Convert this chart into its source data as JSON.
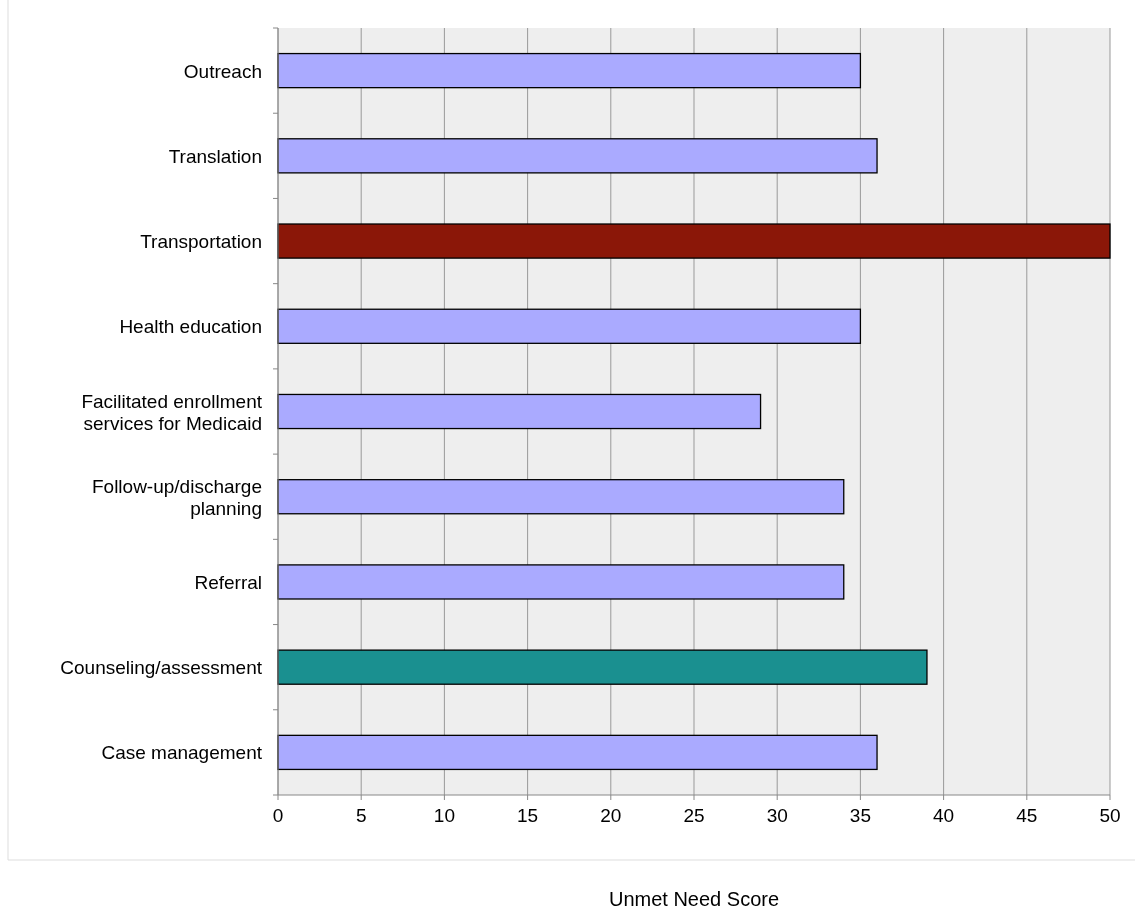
{
  "chart_data": {
    "type": "bar",
    "orientation": "horizontal",
    "xlabel": "Unmet Need Score",
    "categories": [
      "Outreach",
      "Translation",
      "Transportation",
      "Health education",
      "Facilitated enrollment services for Medicaid",
      "Follow-up/discharge planning",
      "Referral",
      "Counseling/assessment",
      "Case management"
    ],
    "values": [
      35,
      36,
      50,
      35,
      29,
      34,
      34,
      39,
      36
    ],
    "colors": [
      "#aaaaff",
      "#aaaaff",
      "#8b1708",
      "#aaaaff",
      "#aaaaff",
      "#aaaaff",
      "#aaaaff",
      "#1a9090",
      "#aaaaff"
    ],
    "xlim": [
      0,
      50
    ],
    "xticks": [
      0,
      5,
      10,
      15,
      20,
      25,
      30,
      35,
      40,
      45,
      50
    ],
    "grid": "x"
  }
}
